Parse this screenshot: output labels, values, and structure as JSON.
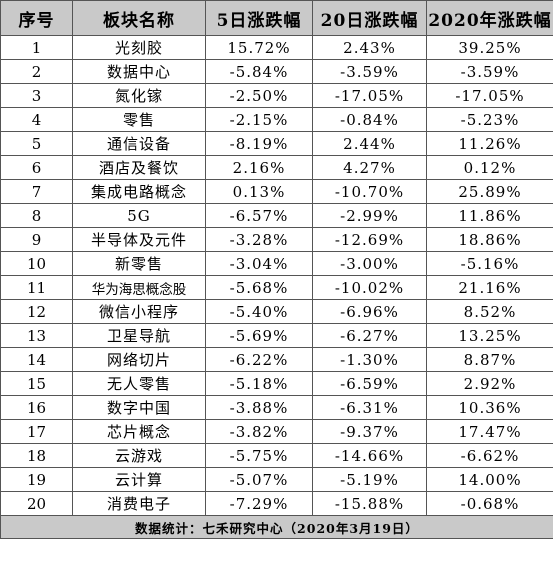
{
  "table": {
    "headers": [
      "序号",
      "板块名称",
      "5日涨跌幅",
      "20日涨跌幅",
      "2020年涨跌幅"
    ],
    "rows": [
      [
        "1",
        "光刻胶",
        "15.72%",
        "2.43%",
        "39.25%"
      ],
      [
        "2",
        "数据中心",
        "-5.84%",
        "-3.59%",
        "-3.59%"
      ],
      [
        "3",
        "氮化镓",
        "-2.50%",
        "-17.05%",
        "-17.05%"
      ],
      [
        "4",
        "零售",
        "-2.15%",
        "-0.84%",
        "-5.23%"
      ],
      [
        "5",
        "通信设备",
        "-8.19%",
        "2.44%",
        "11.26%"
      ],
      [
        "6",
        "酒店及餐饮",
        "2.16%",
        "4.27%",
        "0.12%"
      ],
      [
        "7",
        "集成电路概念",
        "0.13%",
        "-10.70%",
        "25.89%"
      ],
      [
        "8",
        "5G",
        "-6.57%",
        "-2.99%",
        "11.86%"
      ],
      [
        "9",
        "半导体及元件",
        "-3.28%",
        "-12.69%",
        "18.86%"
      ],
      [
        "10",
        "新零售",
        "-3.04%",
        "-3.00%",
        "-5.16%"
      ],
      [
        "11",
        "华为海思概念股",
        "-5.68%",
        "-10.02%",
        "21.16%"
      ],
      [
        "12",
        "微信小程序",
        "-5.40%",
        "-6.96%",
        "8.52%"
      ],
      [
        "13",
        "卫星导航",
        "-5.69%",
        "-6.27%",
        "13.25%"
      ],
      [
        "14",
        "网络切片",
        "-6.22%",
        "-1.30%",
        "8.87%"
      ],
      [
        "15",
        "无人零售",
        "-5.18%",
        "-6.59%",
        "2.92%"
      ],
      [
        "16",
        "数字中国",
        "-3.88%",
        "-6.31%",
        "10.36%"
      ],
      [
        "17",
        "芯片概念",
        "-3.82%",
        "-9.37%",
        "17.47%"
      ],
      [
        "18",
        "云游戏",
        "-5.75%",
        "-14.66%",
        "-6.62%"
      ],
      [
        "19",
        "云计算",
        "-5.07%",
        "-5.19%",
        "14.00%"
      ],
      [
        "20",
        "消费电子",
        "-7.29%",
        "-15.88%",
        "-0.68%"
      ]
    ],
    "footer": "数据统计：七禾研究中心（2020年3月19日）"
  }
}
